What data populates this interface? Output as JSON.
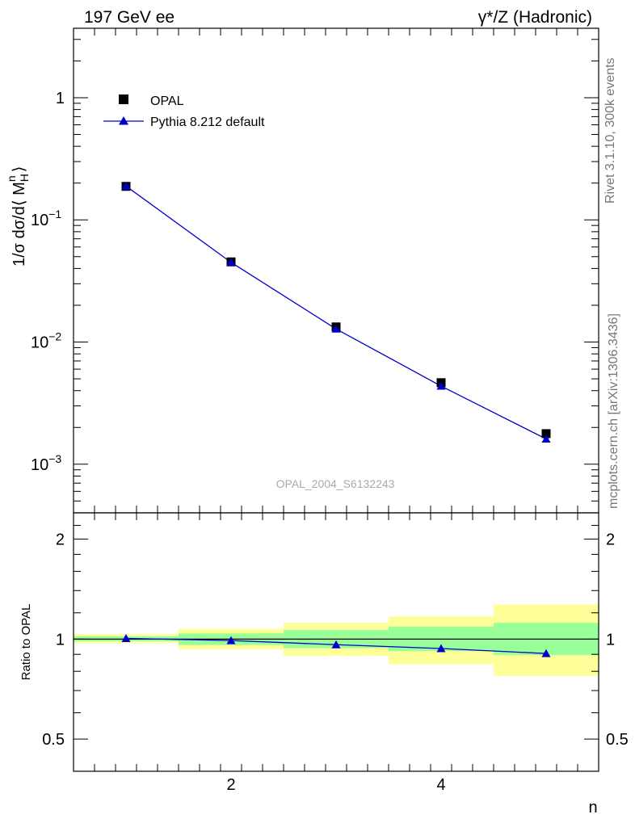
{
  "header": {
    "left_label": "197 GeV ee",
    "right_label": "γ*/Z (Hadronic)"
  },
  "side_labels": {
    "rivet": "Rivet 3.1.10,  300k events",
    "mcplots": "mcplots.cern.ch [arXiv:1306.3436]"
  },
  "watermark": "OPAL_2004_S6132243",
  "axes": {
    "main_ylabel": "1/σ dσ/d⟨ M_H^n ⟩",
    "ratio_ylabel": "Ratio to OPAL",
    "xlabel": "n"
  },
  "legend": {
    "data_label": "OPAL",
    "mc_label": "Pythia 8.212 default"
  },
  "colors": {
    "data": "#000000",
    "mc": "#0000cc",
    "band_inner": "#99ff99",
    "band_outer": "#ffff99"
  },
  "chart_data": [
    {
      "type": "scatter",
      "title": "197 GeV ee",
      "xlabel": "n",
      "ylabel": "1/σ dσ/d⟨ M_H^n ⟩",
      "xlim": [
        0.5,
        5.5
      ],
      "ylim": [
        0.0004,
        3.7
      ],
      "yscale": "log",
      "x_ticks": [
        2,
        4
      ],
      "y_ticks": [
        {
          "value": 1,
          "label": "1"
        },
        {
          "value": 0.1,
          "label": "10",
          "exp": "−1"
        },
        {
          "value": 0.01,
          "label": "10",
          "exp": "−2"
        },
        {
          "value": 0.001,
          "label": "10",
          "exp": "−3"
        }
      ],
      "series": [
        {
          "name": "OPAL",
          "x": [
            1,
            2,
            3,
            4,
            5
          ],
          "values": [
            0.188,
            0.0453,
            0.0133,
            0.00465,
            0.00178
          ]
        },
        {
          "name": "Pythia 8.212 default",
          "x": [
            1,
            2,
            3,
            4,
            5
          ],
          "values": [
            0.189,
            0.0449,
            0.0128,
            0.00436,
            0.00161
          ]
        }
      ]
    },
    {
      "type": "line",
      "title": "Ratio to OPAL",
      "xlabel": "n",
      "ylabel": "Ratio to OPAL",
      "xlim": [
        0.5,
        5.5
      ],
      "ylim": [
        0.4,
        2.4
      ],
      "yscale": "log",
      "y_ticks": [
        {
          "value": 0.5,
          "label": "0.5"
        },
        {
          "value": 1,
          "label": "1"
        },
        {
          "value": 2,
          "label": "2"
        }
      ],
      "series": [
        {
          "name": "Pythia 8.212 default / OPAL",
          "x": [
            1,
            2,
            3,
            4,
            5
          ],
          "values": [
            1.005,
            0.99,
            0.962,
            0.937,
            0.905
          ]
        }
      ],
      "bands": [
        {
          "x_range": [
            0.5,
            1.5
          ],
          "inner": [
            0.985,
            1.02
          ],
          "outer": [
            0.972,
            1.035
          ]
        },
        {
          "x_range": [
            1.5,
            2.5
          ],
          "inner": [
            0.96,
            1.04
          ],
          "outer": [
            0.93,
            1.075
          ]
        },
        {
          "x_range": [
            2.5,
            3.5
          ],
          "inner": [
            0.94,
            1.065
          ],
          "outer": [
            0.89,
            1.12
          ]
        },
        {
          "x_range": [
            3.5,
            4.5
          ],
          "inner": [
            0.92,
            1.09
          ],
          "outer": [
            0.84,
            1.17
          ]
        },
        {
          "x_range": [
            4.5,
            5.5
          ],
          "inner": [
            0.895,
            1.12
          ],
          "outer": [
            0.775,
            1.27
          ]
        }
      ]
    }
  ]
}
